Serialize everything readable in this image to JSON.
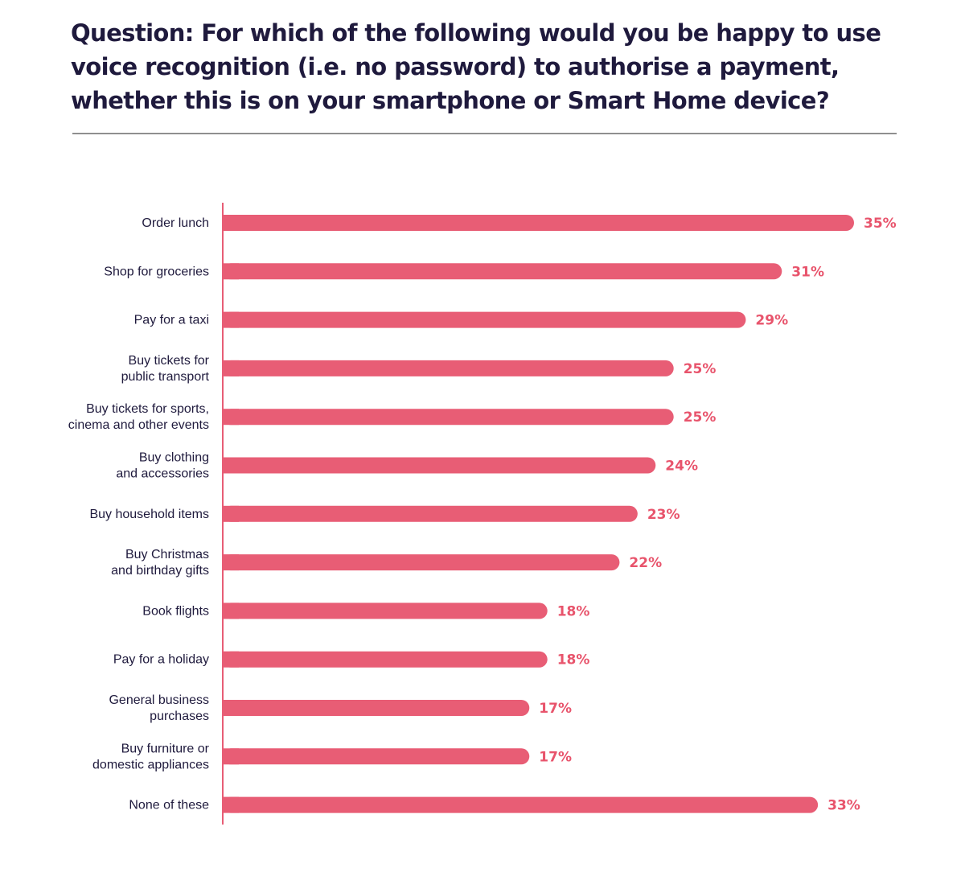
{
  "title": "Question: For which of the following would you be happy to use voice recognition (i.e. no password) to authorise a payment, whether this is on your smartphone or Smart Home device?",
  "colors": {
    "bar": "#e85d75",
    "value_text": "#e8546c",
    "title_text": "#1f1a3d",
    "axis": "#e85d75",
    "divider": "#8f8f8f"
  },
  "chart_data": {
    "type": "bar",
    "orientation": "horizontal",
    "title": "Question: For which of the following would you be happy to use voice recognition (i.e. no password) to authorise a payment, whether this is on your smartphone or Smart Home device?",
    "xlabel": "",
    "ylabel": "",
    "xlim": [
      0,
      35
    ],
    "grid": false,
    "value_suffix": "%",
    "categories": [
      [
        "Order lunch"
      ],
      [
        "Shop for groceries"
      ],
      [
        "Pay for a taxi"
      ],
      [
        "Buy tickets for",
        "public transport"
      ],
      [
        "Buy tickets for sports,",
        "cinema and other events"
      ],
      [
        "Buy clothing",
        "and accessories"
      ],
      [
        "Buy household items"
      ],
      [
        "Buy Christmas",
        "and birthday gifts"
      ],
      [
        "Book flights"
      ],
      [
        "Pay for a holiday"
      ],
      [
        "General business",
        "purchases"
      ],
      [
        "Buy furniture or",
        "domestic appliances"
      ],
      [
        "None of these"
      ]
    ],
    "values": [
      35,
      31,
      29,
      25,
      25,
      24,
      23,
      22,
      18,
      18,
      17,
      17,
      33
    ],
    "value_labels": [
      "35%",
      "31%",
      "29%",
      "25%",
      "25%",
      "24%",
      "23%",
      "22%",
      "18%",
      "18%",
      "17%",
      "17%",
      "33%"
    ]
  }
}
